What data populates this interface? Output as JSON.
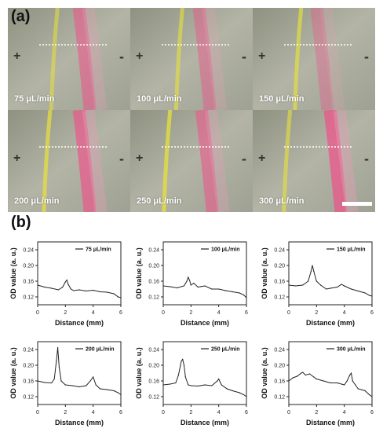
{
  "figure": {
    "panel_a_label": "(a)",
    "panel_b_label": "(b)",
    "electrode_positive": "+",
    "electrode_negative": "-"
  },
  "micrographs": [
    {
      "flow_label": "75  μL/min",
      "yellow_band": 0.38,
      "pink_band": 0.62,
      "yellow_intensity": 0.55,
      "pink_intensity": 0.55
    },
    {
      "flow_label": "100 μL/min",
      "yellow_band": 0.4,
      "pink_band": 0.6,
      "yellow_intensity": 0.6,
      "pink_intensity": 0.45
    },
    {
      "flow_label": "150 μL/min",
      "yellow_band": 0.37,
      "pink_band": 0.56,
      "yellow_intensity": 0.65,
      "pink_intensity": 0.35
    },
    {
      "flow_label": "200 μL/min",
      "yellow_band": 0.32,
      "pink_band": 0.62,
      "yellow_intensity": 0.7,
      "pink_intensity": 0.65
    },
    {
      "flow_label": "250 μL/min",
      "yellow_band": 0.3,
      "pink_band": 0.62,
      "yellow_intensity": 0.75,
      "pink_intensity": 0.55
    },
    {
      "flow_label": "300 μL/min",
      "yellow_band": 0.28,
      "pink_band": 0.67,
      "yellow_intensity": 0.6,
      "pink_intensity": 0.7
    }
  ],
  "chart_data": [
    {
      "type": "line",
      "legend": "75 μL/min",
      "xlabel": "Distance (mm)",
      "ylabel": "OD value (a. u.)",
      "xlim": [
        0,
        6
      ],
      "ylim": [
        0.1,
        0.26
      ],
      "xticks": [
        "0",
        "2",
        "4",
        "6"
      ],
      "yticks": [
        "0.12",
        "0.16",
        "0.20",
        "0.24"
      ],
      "x": [
        0,
        0.5,
        1.0,
        1.5,
        1.8,
        2.0,
        2.1,
        2.2,
        2.4,
        2.6,
        3.0,
        3.5,
        4.0,
        4.5,
        5.0,
        5.5,
        5.8,
        6.0
      ],
      "y": [
        0.15,
        0.145,
        0.142,
        0.138,
        0.145,
        0.158,
        0.163,
        0.152,
        0.14,
        0.136,
        0.138,
        0.135,
        0.137,
        0.133,
        0.132,
        0.128,
        0.12,
        0.118
      ]
    },
    {
      "type": "line",
      "legend": "100 μL/min",
      "xlabel": "Distance (mm)",
      "ylabel": "OD value (a. u.)",
      "xlim": [
        0,
        6
      ],
      "ylim": [
        0.1,
        0.26
      ],
      "xticks": [
        "0",
        "2",
        "4",
        "6"
      ],
      "yticks": [
        "0.12",
        "0.16",
        "0.20",
        "0.24"
      ],
      "x": [
        0,
        0.5,
        1.0,
        1.5,
        1.7,
        1.8,
        1.9,
        2.0,
        2.2,
        2.5,
        3.0,
        3.5,
        4.0,
        4.5,
        5.0,
        5.5,
        5.8,
        6.0
      ],
      "y": [
        0.148,
        0.146,
        0.143,
        0.148,
        0.16,
        0.17,
        0.162,
        0.15,
        0.155,
        0.145,
        0.148,
        0.14,
        0.14,
        0.136,
        0.133,
        0.13,
        0.125,
        0.118
      ]
    },
    {
      "type": "line",
      "legend": "150 μL/min",
      "xlabel": "Distance (mm)",
      "ylabel": "OD value (a. u.)",
      "xlim": [
        0,
        6
      ],
      "ylim": [
        0.1,
        0.26
      ],
      "xticks": [
        "0",
        "2",
        "4",
        "6"
      ],
      "yticks": [
        "0.12",
        "0.16",
        "0.20",
        "0.24"
      ],
      "x": [
        0,
        0.5,
        1.0,
        1.4,
        1.6,
        1.7,
        1.8,
        2.0,
        2.3,
        2.7,
        3.0,
        3.5,
        3.8,
        4.0,
        4.5,
        5.0,
        5.5,
        5.8,
        6.0
      ],
      "y": [
        0.15,
        0.148,
        0.15,
        0.16,
        0.185,
        0.2,
        0.185,
        0.16,
        0.15,
        0.14,
        0.142,
        0.145,
        0.152,
        0.148,
        0.14,
        0.135,
        0.13,
        0.124,
        0.122
      ]
    },
    {
      "type": "line",
      "legend": "200 μL/min",
      "xlabel": "Distance (mm)",
      "ylabel": "OD value (a. u.)",
      "xlim": [
        0,
        6
      ],
      "ylim": [
        0.1,
        0.26
      ],
      "xticks": [
        "0",
        "2",
        "4",
        "6"
      ],
      "yticks": [
        "0.12",
        "0.16",
        "0.20",
        "0.24"
      ],
      "x": [
        0,
        0.5,
        1.0,
        1.2,
        1.35,
        1.45,
        1.55,
        1.7,
        2.0,
        2.5,
        3.0,
        3.5,
        3.8,
        4.0,
        4.2,
        4.5,
        5.0,
        5.5,
        5.8,
        6.0
      ],
      "y": [
        0.16,
        0.156,
        0.155,
        0.165,
        0.21,
        0.245,
        0.195,
        0.16,
        0.15,
        0.148,
        0.145,
        0.148,
        0.16,
        0.17,
        0.15,
        0.14,
        0.138,
        0.135,
        0.13,
        0.125
      ]
    },
    {
      "type": "line",
      "legend": "250 μL/min",
      "xlabel": "Distance (mm)",
      "ylabel": "OD value (a. u.)",
      "xlim": [
        0,
        6
      ],
      "ylim": [
        0.1,
        0.26
      ],
      "xticks": [
        "0",
        "2",
        "4",
        "6"
      ],
      "yticks": [
        "0.12",
        "0.16",
        "0.20",
        "0.24"
      ],
      "x": [
        0,
        0.5,
        0.9,
        1.1,
        1.3,
        1.4,
        1.5,
        1.6,
        1.8,
        2.0,
        2.5,
        3.0,
        3.5,
        3.9,
        4.0,
        4.2,
        4.6,
        5.0,
        5.5,
        5.8,
        6.0
      ],
      "y": [
        0.15,
        0.152,
        0.155,
        0.175,
        0.21,
        0.215,
        0.2,
        0.17,
        0.15,
        0.148,
        0.147,
        0.15,
        0.148,
        0.16,
        0.165,
        0.15,
        0.14,
        0.135,
        0.13,
        0.125,
        0.12
      ]
    },
    {
      "type": "line",
      "legend": "300 μL/min",
      "xlabel": "Distance (mm)",
      "ylabel": "OD value (a. u.)",
      "xlim": [
        0,
        6
      ],
      "ylim": [
        0.1,
        0.26
      ],
      "xticks": [
        "0",
        "2",
        "4",
        "6"
      ],
      "yticks": [
        "0.12",
        "0.16",
        "0.20",
        "0.24"
      ],
      "x": [
        0,
        0.3,
        0.6,
        0.9,
        1.0,
        1.2,
        1.5,
        1.8,
        2.0,
        2.5,
        3.0,
        3.5,
        4.0,
        4.2,
        4.4,
        4.5,
        4.6,
        4.8,
        5.0,
        5.5,
        5.8,
        6.0
      ],
      "y": [
        0.16,
        0.168,
        0.172,
        0.18,
        0.182,
        0.175,
        0.178,
        0.17,
        0.165,
        0.16,
        0.155,
        0.155,
        0.15,
        0.16,
        0.175,
        0.18,
        0.16,
        0.15,
        0.14,
        0.135,
        0.125,
        0.12
      ]
    }
  ]
}
